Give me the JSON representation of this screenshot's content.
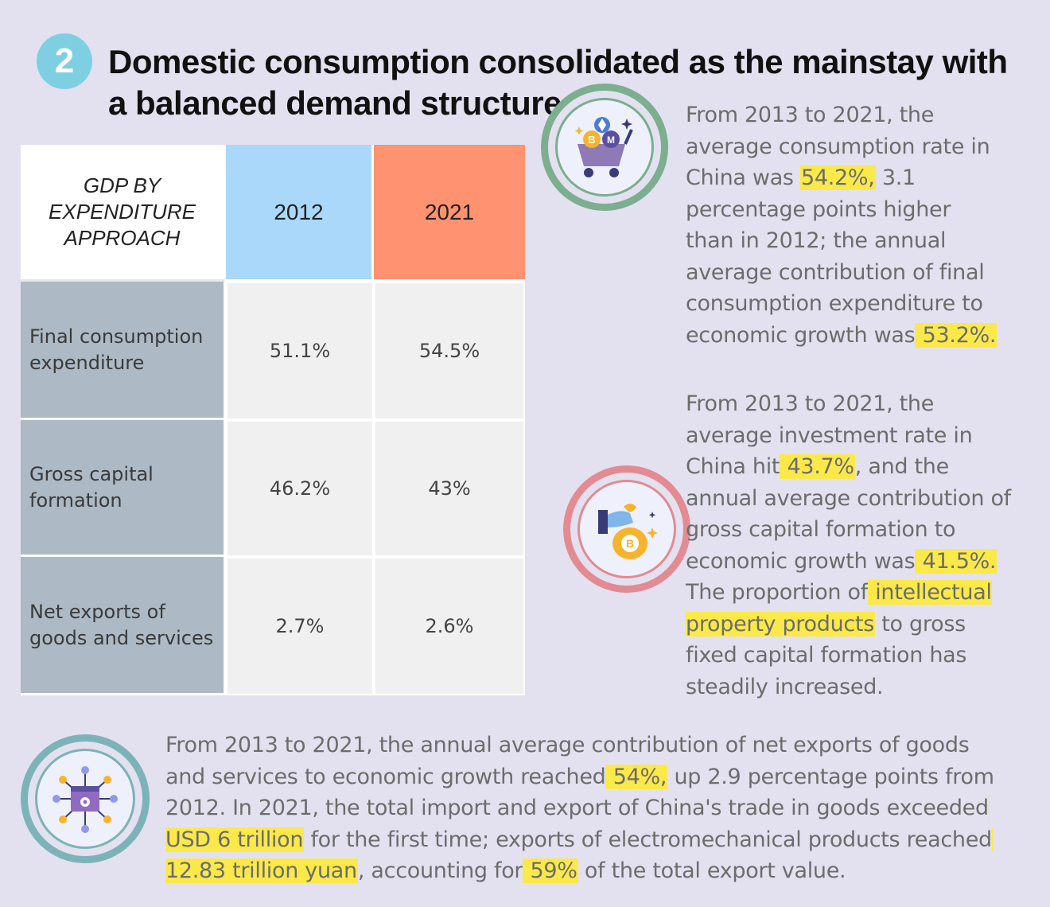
{
  "header": {
    "badge": "2",
    "title": "Domestic consumption consolidated as the mainstay with a balanced demand structure."
  },
  "table": {
    "header_label": "GDP BY EXPENDITURE APPROACH",
    "col_2012": "2012",
    "col_2021": "2021",
    "rows": [
      {
        "label": "Final consumption expenditure",
        "v2012": "51.1%",
        "v2021": "54.5%"
      },
      {
        "label": "Gross capital formation",
        "v2012": "46.2%",
        "v2021": "43%"
      },
      {
        "label": "Net exports of goods and services",
        "v2012": "2.7%",
        "v2021": "2.6%"
      }
    ]
  },
  "para1": {
    "t1": "From 2013 to 2021, the average consumption rate in China was ",
    "h1": "54.2%,",
    "t2": " 3.1 percentage points higher than in 2012; the annual average contribution of final consumption expenditure to economic growth was",
    "h2": " 53.2%."
  },
  "para2": {
    "t1": "From 2013 to 2021, the average investment rate in China hit",
    "h1": " 43.7%",
    "t2": ", and the annual average contribution of gross capital formation to economic growth was",
    "h2": " 41.5%.",
    "t3": " The proportion of",
    "h3": " intellectual property products",
    "t4": " to gross fixed capital formation has steadily increased."
  },
  "para3": {
    "t1": "From 2013 to 2021, the annual average contribution of net exports of goods and services to economic growth reached",
    "h1": " 54%,",
    "t2": " up 2.9 percentage points from 2012. In 2021, the total import and export of China's trade in goods exceeded",
    "h2": " USD 6 trillion",
    "t3": " for the first time; exports of electromechanical products reached",
    "h3": " 12.83 trillion yuan",
    "t4": ", accounting for",
    "h4": " 59%",
    "t5": " of the total export value."
  },
  "icons": {
    "consumption": "crypto-cart-icon",
    "investment": "bitcoin-money-bag-icon",
    "exports": "chip-network-icon"
  }
}
